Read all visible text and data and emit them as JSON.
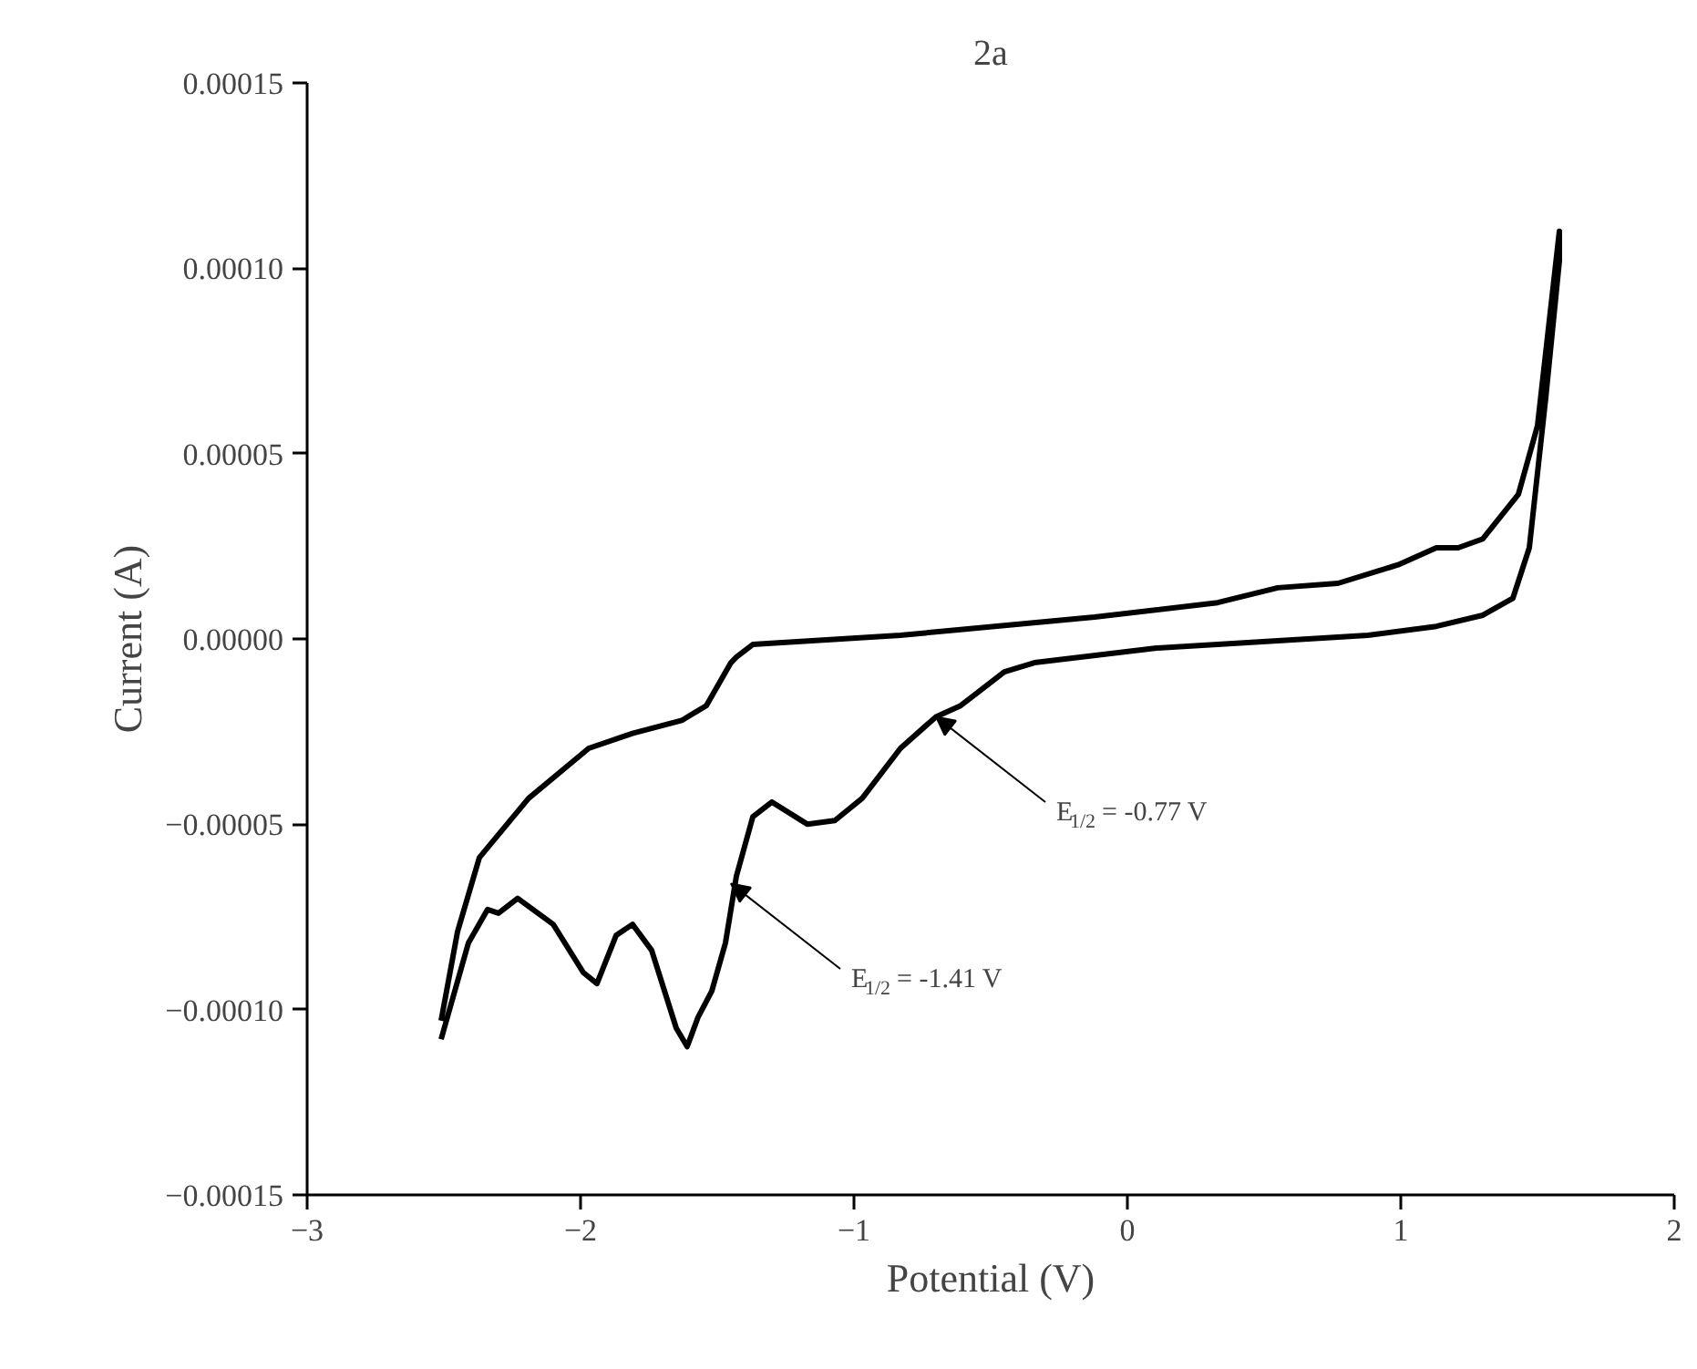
{
  "chart_data": {
    "type": "line",
    "title": "2a",
    "xlabel": "Potential (V)",
    "ylabel": "Current (A)",
    "xlim": [
      -3,
      2
    ],
    "xticks": [
      {
        "value": -3,
        "label": "−3"
      },
      {
        "value": -2,
        "label": "−2"
      },
      {
        "value": -1,
        "label": "−1"
      },
      0,
      1,
      2
    ],
    "ylim": [
      -0.00015,
      0.00015
    ],
    "yticks": [
      {
        "value": -0.00015,
        "label": "−0.00015"
      },
      {
        "value": -0.0001,
        "label": "−0.00010"
      },
      {
        "value": -5e-05,
        "label": "−0.00005"
      },
      {
        "value": 0,
        "label": "0.00000"
      },
      {
        "value": 5e-05,
        "label": "0.00005"
      },
      {
        "value": 0.0001,
        "label": "0.00010"
      },
      {
        "value": 0.00015,
        "label": "0.00015"
      }
    ],
    "grid": false,
    "marker": "none",
    "line_style": "solid",
    "series": [
      {
        "color": "#000000",
        "x": [
          -2.51,
          -2.45,
          -2.37,
          -2.19,
          -1.97,
          -1.81,
          -1.63,
          -1.54,
          -1.45,
          -1.43,
          -1.37,
          -0.83,
          -0.61,
          -0.12,
          0.33,
          0.55,
          0.77,
          0.99,
          1.13,
          1.21,
          1.3,
          1.43,
          1.5,
          1.58,
          1.58,
          1.53,
          1.47,
          1.41,
          1.3,
          1.13,
          0.88,
          0.55,
          0.1,
          -0.34,
          -0.45,
          -0.61,
          -0.7,
          -0.83,
          -0.97,
          -1.07,
          -1.17,
          -1.3,
          -1.37,
          -1.43,
          -1.47,
          -1.52,
          -1.57,
          -1.61,
          -1.65,
          -1.74,
          -1.81,
          -1.87,
          -1.94,
          -1.99,
          -2.1,
          -2.23,
          -2.3,
          -2.34,
          -2.41,
          -2.51
        ],
        "values": [
          -0.000103,
          -7.9e-05,
          -5.9e-05,
          -4.3e-05,
          -2.95e-05,
          -2.55e-05,
          -2.2e-05,
          -1.8e-05,
          -6.4e-06,
          -4.9e-06,
          -1.5e-06,
          1e-06,
          2.5e-06,
          5.9e-06,
          9.8e-06,
          1.38e-05,
          1.5e-05,
          2e-05,
          2.46e-05,
          2.46e-05,
          2.7e-05,
          3.9e-05,
          5.75e-05,
          0.00011,
          0.000102,
          6.5e-05,
          2.46e-05,
          1.1e-05,
          6.4e-06,
          3.4e-06,
          1e-06,
          -5e-07,
          -2.5e-06,
          -6.4e-06,
          -8.9e-06,
          -1.8e-05,
          -2.1e-05,
          -2.95e-05,
          -4.3e-05,
          -4.9e-05,
          -5e-05,
          -4.4e-05,
          -4.8e-05,
          -6.4e-05,
          -8.2e-05,
          -9.5e-05,
          -0.000102,
          -0.00011,
          -0.000105,
          -8.4e-05,
          -7.7e-05,
          -8e-05,
          -9.3e-05,
          -9e-05,
          -7.7e-05,
          -7e-05,
          -7.4e-05,
          -7.3e-05,
          -8.2e-05,
          -0.000108
        ]
      }
    ],
    "annotations": [
      {
        "text": "E$_{1/2}$= -0.77 V",
        "x": -0.7,
        "y": -2.1e-05
      },
      {
        "text": "E$_{1/2}$= -1.41 V",
        "x": -1.45,
        "y": -6.6e-05
      }
    ]
  }
}
